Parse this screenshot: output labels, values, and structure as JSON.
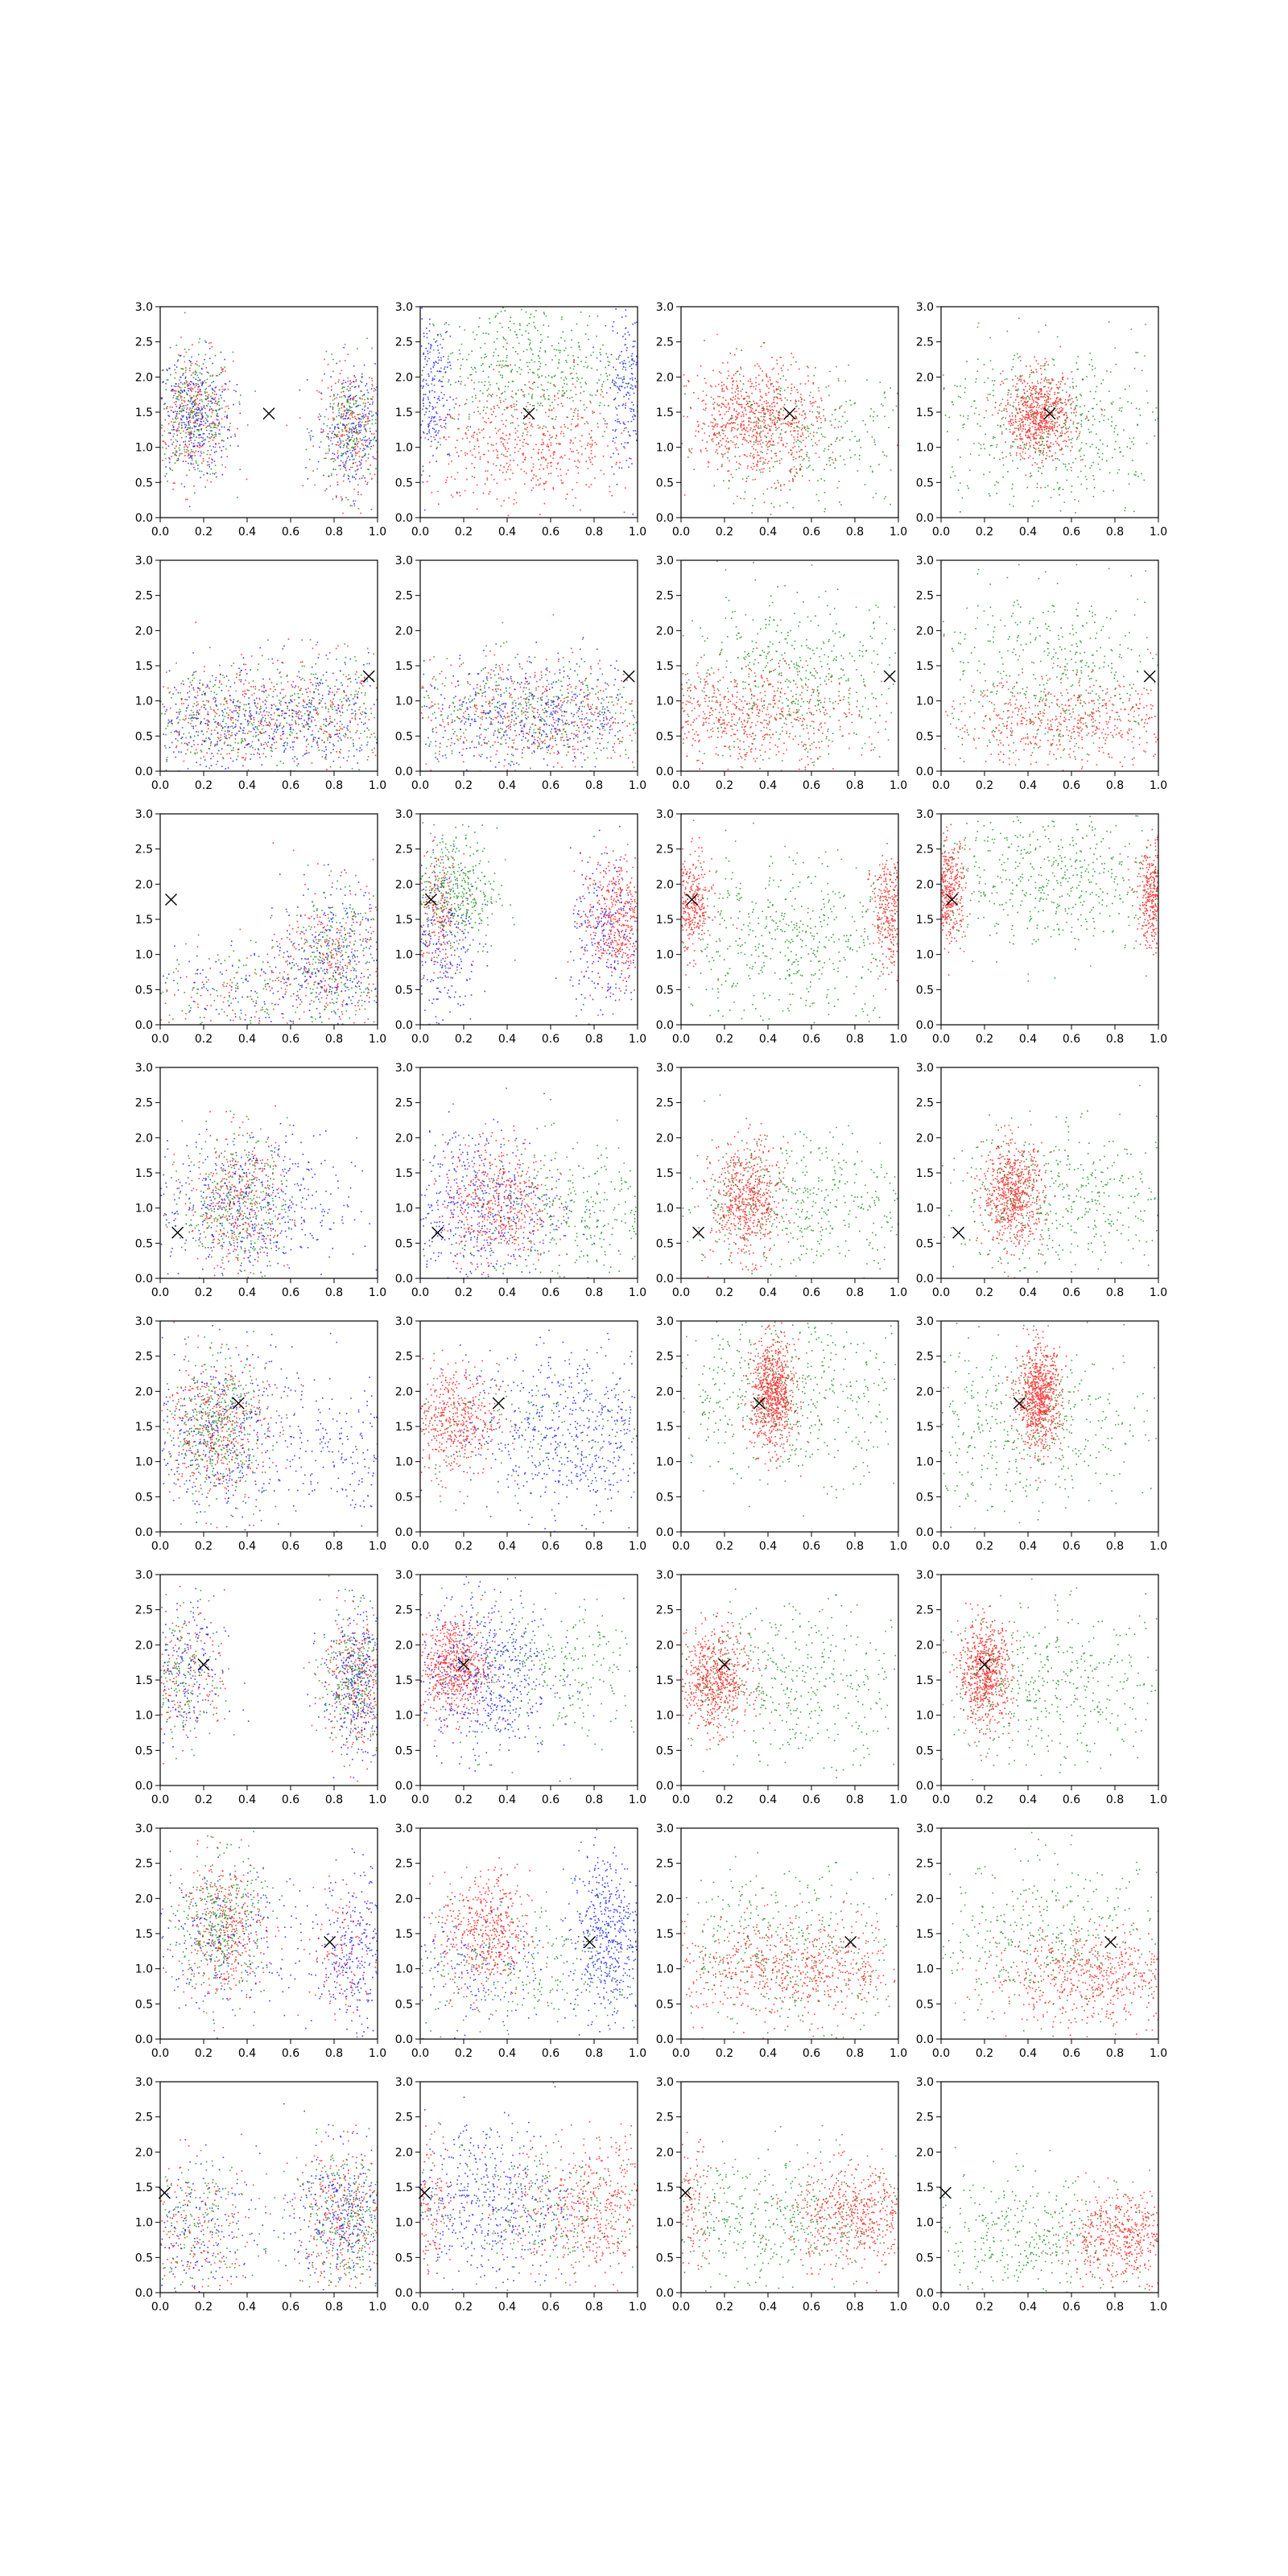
{
  "chart_data": {
    "type": "scatter",
    "layout": {
      "rows": 8,
      "cols": 4
    },
    "xlim": [
      0,
      1
    ],
    "ylim": [
      0,
      3
    ],
    "x_ticks": [
      "0.0",
      "0.2",
      "0.4",
      "0.6",
      "0.8",
      "1.0"
    ],
    "y_ticks": [
      "0.0",
      "0.5",
      "1.0",
      "1.5",
      "2.0",
      "2.5",
      "3.0"
    ],
    "grid": false,
    "legend": "none",
    "colors": {
      "red": "#ff0000",
      "green": "#008000",
      "blue": "#0000ff",
      "marker": "#000000"
    },
    "markers": [
      {
        "row": 1,
        "x": 0.5,
        "y": 1.48
      },
      {
        "row": 2,
        "x": 0.96,
        "y": 1.35
      },
      {
        "row": 3,
        "x": 0.05,
        "y": 1.78
      },
      {
        "row": 4,
        "x": 0.08,
        "y": 0.65
      },
      {
        "row": 5,
        "x": 0.36,
        "y": 1.83
      },
      {
        "row": 6,
        "x": 0.2,
        "y": 1.72
      },
      {
        "row": 7,
        "x": 0.78,
        "y": 1.38
      },
      {
        "row": 8,
        "x": 0.02,
        "y": 1.42
      }
    ],
    "clusters": [
      [
        [
          {
            "color": "red",
            "x": 0.15,
            "y": 1.45,
            "sx": 0.09,
            "sy": 0.45,
            "n": 500
          },
          {
            "color": "green",
            "x": 0.15,
            "y": 1.45,
            "sx": 0.09,
            "sy": 0.45,
            "n": 500
          },
          {
            "color": "blue",
            "x": 0.15,
            "y": 1.45,
            "sx": 0.09,
            "sy": 0.45,
            "n": 500
          },
          {
            "color": "red",
            "x": 0.88,
            "y": 1.25,
            "sx": 0.08,
            "sy": 0.45,
            "n": 400
          },
          {
            "color": "green",
            "x": 0.88,
            "y": 1.25,
            "sx": 0.08,
            "sy": 0.45,
            "n": 400
          },
          {
            "color": "blue",
            "x": 0.88,
            "y": 1.25,
            "sx": 0.08,
            "sy": 0.45,
            "n": 400
          }
        ],
        [
          {
            "color": "green",
            "x": 0.5,
            "y": 2.1,
            "sx": 0.25,
            "sy": 0.5,
            "n": 900
          },
          {
            "color": "blue",
            "x": 0.03,
            "y": 1.9,
            "sx": 0.06,
            "sy": 0.6,
            "n": 450
          },
          {
            "color": "blue",
            "x": 0.97,
            "y": 1.9,
            "sx": 0.06,
            "sy": 0.6,
            "n": 450
          },
          {
            "color": "red",
            "x": 0.5,
            "y": 1.0,
            "sx": 0.25,
            "sy": 0.45,
            "n": 900
          }
        ],
        [
          {
            "color": "red",
            "x": 0.35,
            "y": 1.4,
            "sx": 0.15,
            "sy": 0.4,
            "n": 1300
          },
          {
            "color": "green",
            "x": 0.55,
            "y": 1.1,
            "sx": 0.3,
            "sy": 0.5,
            "n": 600
          }
        ],
        [
          {
            "color": "red",
            "x": 0.45,
            "y": 1.45,
            "sx": 0.08,
            "sy": 0.3,
            "n": 1200
          },
          {
            "color": "green",
            "x": 0.5,
            "y": 1.3,
            "sx": 0.3,
            "sy": 0.6,
            "n": 900
          }
        ]
      ],
      [
        [
          {
            "color": "red",
            "x": 0.75,
            "y": 0.85,
            "sx": 0.25,
            "sy": 0.4,
            "n": 500
          },
          {
            "color": "green",
            "x": 0.75,
            "y": 0.85,
            "sx": 0.25,
            "sy": 0.4,
            "n": 500
          },
          {
            "color": "blue",
            "x": 0.75,
            "y": 0.85,
            "sx": 0.25,
            "sy": 0.4,
            "n": 500
          },
          {
            "color": "red",
            "x": 0.25,
            "y": 0.7,
            "sx": 0.2,
            "sy": 0.4,
            "n": 400
          },
          {
            "color": "green",
            "x": 0.25,
            "y": 0.7,
            "sx": 0.2,
            "sy": 0.4,
            "n": 400
          },
          {
            "color": "blue",
            "x": 0.25,
            "y": 0.7,
            "sx": 0.2,
            "sy": 0.4,
            "n": 400
          }
        ],
        [
          {
            "color": "red",
            "x": 0.5,
            "y": 0.8,
            "sx": 0.3,
            "sy": 0.4,
            "n": 800
          },
          {
            "color": "green",
            "x": 0.5,
            "y": 0.8,
            "sx": 0.3,
            "sy": 0.4,
            "n": 700
          },
          {
            "color": "blue",
            "x": 0.5,
            "y": 0.8,
            "sx": 0.3,
            "sy": 0.4,
            "n": 800
          }
        ],
        [
          {
            "color": "red",
            "x": 0.3,
            "y": 0.8,
            "sx": 0.25,
            "sy": 0.35,
            "n": 1000
          },
          {
            "color": "green",
            "x": 0.5,
            "y": 1.3,
            "sx": 0.3,
            "sy": 0.6,
            "n": 900
          }
        ],
        [
          {
            "color": "red",
            "x": 0.6,
            "y": 0.7,
            "sx": 0.3,
            "sy": 0.3,
            "n": 900
          },
          {
            "color": "green",
            "x": 0.5,
            "y": 1.4,
            "sx": 0.3,
            "sy": 0.6,
            "n": 800
          }
        ]
      ],
      [
        [
          {
            "color": "red",
            "x": 0.8,
            "y": 1.0,
            "sx": 0.12,
            "sy": 0.5,
            "n": 400
          },
          {
            "color": "green",
            "x": 0.8,
            "y": 1.0,
            "sx": 0.12,
            "sy": 0.5,
            "n": 400
          },
          {
            "color": "blue",
            "x": 0.8,
            "y": 1.0,
            "sx": 0.12,
            "sy": 0.5,
            "n": 400
          },
          {
            "color": "red",
            "x": 0.4,
            "y": 0.5,
            "sx": 0.3,
            "sy": 0.35,
            "n": 250
          },
          {
            "color": "green",
            "x": 0.4,
            "y": 0.5,
            "sx": 0.3,
            "sy": 0.35,
            "n": 250
          },
          {
            "color": "blue",
            "x": 0.4,
            "y": 0.5,
            "sx": 0.3,
            "sy": 0.35,
            "n": 250
          }
        ],
        [
          {
            "color": "green",
            "x": 0.15,
            "y": 1.9,
            "sx": 0.1,
            "sy": 0.45,
            "n": 700
          },
          {
            "color": "red",
            "x": 0.9,
            "y": 1.5,
            "sx": 0.08,
            "sy": 0.45,
            "n": 800
          },
          {
            "color": "blue",
            "x": 0.1,
            "y": 1.2,
            "sx": 0.08,
            "sy": 0.6,
            "n": 400
          },
          {
            "color": "blue",
            "x": 0.85,
            "y": 1.2,
            "sx": 0.08,
            "sy": 0.6,
            "n": 400
          },
          {
            "color": "red",
            "x": 0.08,
            "y": 1.6,
            "sx": 0.05,
            "sy": 0.4,
            "n": 300
          }
        ],
        [
          {
            "color": "red",
            "x": 0.04,
            "y": 1.7,
            "sx": 0.05,
            "sy": 0.35,
            "n": 600
          },
          {
            "color": "red",
            "x": 0.97,
            "y": 1.6,
            "sx": 0.05,
            "sy": 0.4,
            "n": 600
          },
          {
            "color": "green",
            "x": 0.5,
            "y": 1.2,
            "sx": 0.3,
            "sy": 0.6,
            "n": 900
          }
        ],
        [
          {
            "color": "red",
            "x": 0.03,
            "y": 1.9,
            "sx": 0.04,
            "sy": 0.35,
            "n": 700
          },
          {
            "color": "red",
            "x": 0.98,
            "y": 1.8,
            "sx": 0.04,
            "sy": 0.35,
            "n": 700
          },
          {
            "color": "green",
            "x": 0.5,
            "y": 2.1,
            "sx": 0.3,
            "sy": 0.5,
            "n": 900
          }
        ]
      ],
      [
        [
          {
            "color": "red",
            "x": 0.35,
            "y": 1.1,
            "sx": 0.12,
            "sy": 0.5,
            "n": 600
          },
          {
            "color": "green",
            "x": 0.35,
            "y": 1.1,
            "sx": 0.12,
            "sy": 0.5,
            "n": 600
          },
          {
            "color": "blue",
            "x": 0.4,
            "y": 1.0,
            "sx": 0.25,
            "sy": 0.5,
            "n": 800
          }
        ],
        [
          {
            "color": "blue",
            "x": 0.25,
            "y": 1.0,
            "sx": 0.2,
            "sy": 0.6,
            "n": 900
          },
          {
            "color": "red",
            "x": 0.35,
            "y": 1.1,
            "sx": 0.12,
            "sy": 0.45,
            "n": 800
          },
          {
            "color": "green",
            "x": 0.7,
            "y": 0.9,
            "sx": 0.25,
            "sy": 0.5,
            "n": 600
          }
        ],
        [
          {
            "color": "red",
            "x": 0.3,
            "y": 1.1,
            "sx": 0.08,
            "sy": 0.4,
            "n": 1000
          },
          {
            "color": "green",
            "x": 0.55,
            "y": 1.1,
            "sx": 0.3,
            "sy": 0.5,
            "n": 800
          }
        ],
        [
          {
            "color": "red",
            "x": 0.33,
            "y": 1.2,
            "sx": 0.07,
            "sy": 0.35,
            "n": 1100
          },
          {
            "color": "green",
            "x": 0.55,
            "y": 1.1,
            "sx": 0.3,
            "sy": 0.5,
            "n": 800
          }
        ]
      ],
      [
        [
          {
            "color": "red",
            "x": 0.25,
            "y": 1.5,
            "sx": 0.12,
            "sy": 0.5,
            "n": 700
          },
          {
            "color": "green",
            "x": 0.25,
            "y": 1.5,
            "sx": 0.12,
            "sy": 0.5,
            "n": 700
          },
          {
            "color": "blue",
            "x": 0.3,
            "y": 1.4,
            "sx": 0.25,
            "sy": 0.6,
            "n": 800
          },
          {
            "color": "blue",
            "x": 0.9,
            "y": 1.0,
            "sx": 0.1,
            "sy": 0.5,
            "n": 200
          }
        ],
        [
          {
            "color": "red",
            "x": 0.15,
            "y": 1.6,
            "sx": 0.1,
            "sy": 0.4,
            "n": 800
          },
          {
            "color": "blue",
            "x": 0.7,
            "y": 1.4,
            "sx": 0.25,
            "sy": 0.6,
            "n": 1000
          },
          {
            "color": "green",
            "x": 0.5,
            "y": 1.5,
            "sx": 0.3,
            "sy": 0.5,
            "n": 300
          }
        ],
        [
          {
            "color": "red",
            "x": 0.42,
            "y": 1.95,
            "sx": 0.05,
            "sy": 0.38,
            "n": 1300
          },
          {
            "color": "green",
            "x": 0.5,
            "y": 2.0,
            "sx": 0.3,
            "sy": 0.6,
            "n": 900
          }
        ],
        [
          {
            "color": "red",
            "x": 0.45,
            "y": 1.9,
            "sx": 0.05,
            "sy": 0.35,
            "n": 1300
          },
          {
            "color": "green",
            "x": 0.4,
            "y": 1.5,
            "sx": 0.3,
            "sy": 0.6,
            "n": 800
          }
        ]
      ],
      [
        [
          {
            "color": "red",
            "x": 0.9,
            "y": 1.5,
            "sx": 0.08,
            "sy": 0.5,
            "n": 500
          },
          {
            "color": "green",
            "x": 0.9,
            "y": 1.5,
            "sx": 0.08,
            "sy": 0.5,
            "n": 500
          },
          {
            "color": "blue",
            "x": 0.9,
            "y": 1.5,
            "sx": 0.08,
            "sy": 0.5,
            "n": 500
          },
          {
            "color": "red",
            "x": 0.1,
            "y": 1.6,
            "sx": 0.1,
            "sy": 0.5,
            "n": 300
          },
          {
            "color": "green",
            "x": 0.1,
            "y": 1.6,
            "sx": 0.1,
            "sy": 0.5,
            "n": 300
          },
          {
            "color": "blue",
            "x": 0.1,
            "y": 1.6,
            "sx": 0.1,
            "sy": 0.5,
            "n": 300
          }
        ],
        [
          {
            "color": "red",
            "x": 0.15,
            "y": 1.7,
            "sx": 0.08,
            "sy": 0.35,
            "n": 1000
          },
          {
            "color": "blue",
            "x": 0.3,
            "y": 1.6,
            "sx": 0.15,
            "sy": 0.6,
            "n": 900
          },
          {
            "color": "green",
            "x": 0.6,
            "y": 1.6,
            "sx": 0.25,
            "sy": 0.55,
            "n": 500
          }
        ],
        [
          {
            "color": "red",
            "x": 0.15,
            "y": 1.5,
            "sx": 0.08,
            "sy": 0.35,
            "n": 1000
          },
          {
            "color": "green",
            "x": 0.5,
            "y": 1.5,
            "sx": 0.3,
            "sy": 0.55,
            "n": 800
          }
        ],
        [
          {
            "color": "red",
            "x": 0.2,
            "y": 1.6,
            "sx": 0.06,
            "sy": 0.35,
            "n": 1100
          },
          {
            "color": "green",
            "x": 0.5,
            "y": 1.4,
            "sx": 0.3,
            "sy": 0.55,
            "n": 800
          }
        ]
      ],
      [
        [
          {
            "color": "red",
            "x": 0.28,
            "y": 1.6,
            "sx": 0.1,
            "sy": 0.5,
            "n": 600
          },
          {
            "color": "green",
            "x": 0.28,
            "y": 1.6,
            "sx": 0.1,
            "sy": 0.5,
            "n": 600
          },
          {
            "color": "blue",
            "x": 0.3,
            "y": 1.4,
            "sx": 0.25,
            "sy": 0.5,
            "n": 400
          },
          {
            "color": "blue",
            "x": 0.9,
            "y": 1.3,
            "sx": 0.08,
            "sy": 0.55,
            "n": 500
          },
          {
            "color": "red",
            "x": 0.85,
            "y": 1.2,
            "sx": 0.1,
            "sy": 0.5,
            "n": 200
          }
        ],
        [
          {
            "color": "red",
            "x": 0.3,
            "y": 1.5,
            "sx": 0.1,
            "sy": 0.45,
            "n": 800
          },
          {
            "color": "blue",
            "x": 0.85,
            "y": 1.5,
            "sx": 0.08,
            "sy": 0.6,
            "n": 800
          },
          {
            "color": "green",
            "x": 0.5,
            "y": 1.1,
            "sx": 0.3,
            "sy": 0.5,
            "n": 500
          },
          {
            "color": "blue",
            "x": 0.2,
            "y": 1.0,
            "sx": 0.2,
            "sy": 0.5,
            "n": 300
          }
        ],
        [
          {
            "color": "red",
            "x": 0.5,
            "y": 1.0,
            "sx": 0.3,
            "sy": 0.35,
            "n": 1100
          },
          {
            "color": "green",
            "x": 0.5,
            "y": 1.3,
            "sx": 0.3,
            "sy": 0.55,
            "n": 700
          }
        ],
        [
          {
            "color": "red",
            "x": 0.7,
            "y": 0.9,
            "sx": 0.25,
            "sy": 0.35,
            "n": 1000
          },
          {
            "color": "green",
            "x": 0.5,
            "y": 1.4,
            "sx": 0.3,
            "sy": 0.55,
            "n": 700
          }
        ]
      ],
      [
        [
          {
            "color": "red",
            "x": 0.85,
            "y": 1.1,
            "sx": 0.12,
            "sy": 0.5,
            "n": 500
          },
          {
            "color": "green",
            "x": 0.85,
            "y": 1.1,
            "sx": 0.12,
            "sy": 0.5,
            "n": 500
          },
          {
            "color": "blue",
            "x": 0.85,
            "y": 1.1,
            "sx": 0.12,
            "sy": 0.5,
            "n": 500
          },
          {
            "color": "red",
            "x": 0.15,
            "y": 0.9,
            "sx": 0.15,
            "sy": 0.5,
            "n": 300
          },
          {
            "color": "green",
            "x": 0.15,
            "y": 0.9,
            "sx": 0.15,
            "sy": 0.5,
            "n": 300
          },
          {
            "color": "blue",
            "x": 0.15,
            "y": 0.9,
            "sx": 0.15,
            "sy": 0.5,
            "n": 300
          }
        ],
        [
          {
            "color": "red",
            "x": 0.8,
            "y": 1.2,
            "sx": 0.2,
            "sy": 0.5,
            "n": 900
          },
          {
            "color": "blue",
            "x": 0.3,
            "y": 1.3,
            "sx": 0.2,
            "sy": 0.6,
            "n": 800
          },
          {
            "color": "green",
            "x": 0.5,
            "y": 1.2,
            "sx": 0.3,
            "sy": 0.5,
            "n": 500
          },
          {
            "color": "red",
            "x": 0.05,
            "y": 1.3,
            "sx": 0.05,
            "sy": 0.5,
            "n": 200
          }
        ],
        [
          {
            "color": "red",
            "x": 0.8,
            "y": 1.1,
            "sx": 0.15,
            "sy": 0.35,
            "n": 900
          },
          {
            "color": "green",
            "x": 0.4,
            "y": 1.0,
            "sx": 0.3,
            "sy": 0.5,
            "n": 800
          },
          {
            "color": "red",
            "x": 0.05,
            "y": 1.3,
            "sx": 0.05,
            "sy": 0.4,
            "n": 200
          }
        ],
        [
          {
            "color": "red",
            "x": 0.85,
            "y": 0.8,
            "sx": 0.15,
            "sy": 0.3,
            "n": 900
          },
          {
            "color": "green",
            "x": 0.4,
            "y": 0.8,
            "sx": 0.3,
            "sy": 0.45,
            "n": 700
          }
        ]
      ]
    ]
  }
}
